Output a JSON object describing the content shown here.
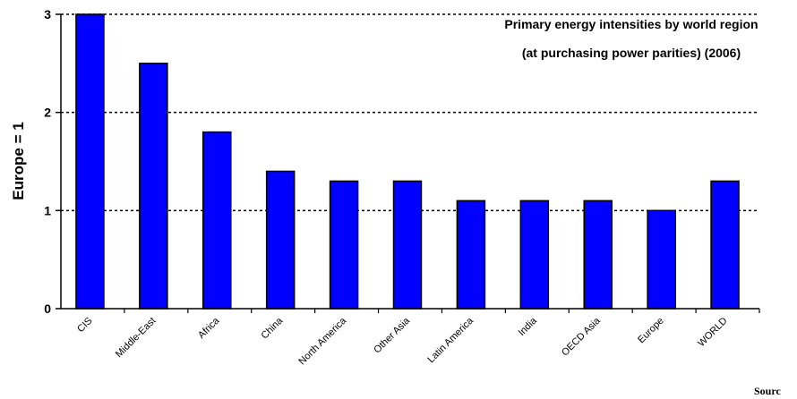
{
  "chart_data": {
    "type": "bar",
    "title": "Primary energy intensities by world region",
    "subtitle": "(at purchasing power parities) (2006)",
    "ylabel": "Europe = 1",
    "xlabel": "",
    "categories": [
      "CIS",
      "Middle-East",
      "Africa",
      "China",
      "North America",
      "Other Asia",
      "Latin America",
      "India",
      "OECD Asia",
      "Europe",
      "WORLD"
    ],
    "values": [
      3.0,
      2.5,
      1.8,
      1.4,
      1.3,
      1.3,
      1.1,
      1.1,
      1.1,
      1.0,
      1.3
    ],
    "ylim": [
      0,
      3
    ],
    "yticks": [
      "0",
      "1",
      "2",
      "3"
    ],
    "grid": "dotted at 1, 2 and 3",
    "bar_color": "#0000ff",
    "source_fragment": "Sourc"
  }
}
